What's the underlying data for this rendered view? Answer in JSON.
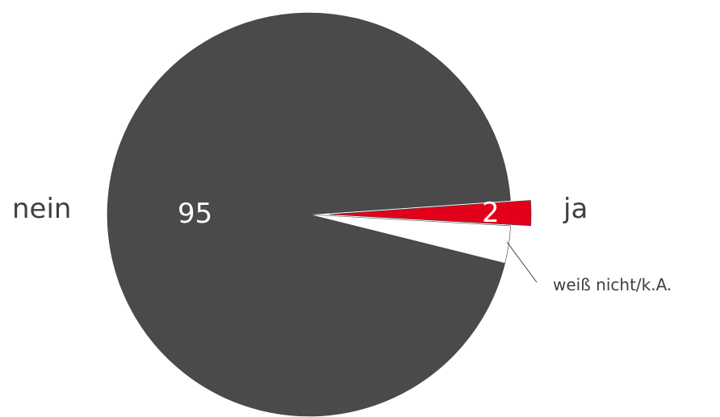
{
  "chart_data": {
    "type": "pie",
    "categories": [
      "nein",
      "ja",
      "weiß nicht/k.A."
    ],
    "values": [
      95,
      2,
      3
    ],
    "value_labels": [
      "95",
      "2",
      ""
    ],
    "colors": [
      "#4a4a4a",
      "#e2001a",
      "#ffffff"
    ],
    "exploded": [
      false,
      true,
      false
    ],
    "legend": "none"
  }
}
